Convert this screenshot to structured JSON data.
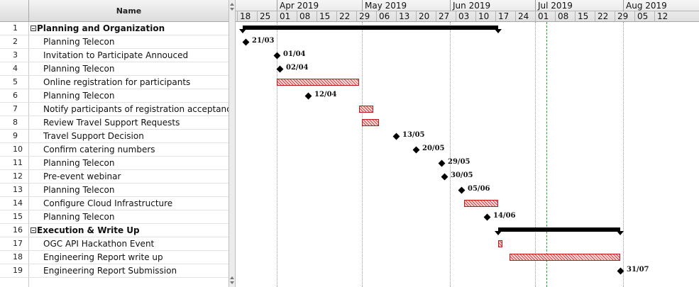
{
  "table": {
    "header_name": "Name",
    "rows": [
      {
        "id": "1",
        "name": "Planning and Organization",
        "summary": true
      },
      {
        "id": "2",
        "name": "Planning Telecon"
      },
      {
        "id": "3",
        "name": "Invitation to Participate Annouced"
      },
      {
        "id": "4",
        "name": "Planning Telecon"
      },
      {
        "id": "5",
        "name": "Online registration for participants"
      },
      {
        "id": "6",
        "name": "Planning Telecon"
      },
      {
        "id": "7",
        "name": "Notify participants of registration acceptance"
      },
      {
        "id": "8",
        "name": "Review Travel Support Requests"
      },
      {
        "id": "9",
        "name": "Travel Support Decision"
      },
      {
        "id": "10",
        "name": "Confirm catering numbers"
      },
      {
        "id": "11",
        "name": "Planning Telecon"
      },
      {
        "id": "12",
        "name": "Pre-event webinar"
      },
      {
        "id": "13",
        "name": "Planning Telecon"
      },
      {
        "id": "14",
        "name": "Configure Cloud Infrastructure"
      },
      {
        "id": "15",
        "name": "Planning Telecon"
      },
      {
        "id": "16",
        "name": "Execution & Write Up",
        "summary": true
      },
      {
        "id": "17",
        "name": "OGC API Hackathon Event"
      },
      {
        "id": "18",
        "name": "Engineering Report write up"
      },
      {
        "id": "19",
        "name": "Engineering Report Submission"
      }
    ]
  },
  "timescale": {
    "start_date": "2019-03-18",
    "months": [
      "Apr 2019",
      "May 2019",
      "Jun 2019",
      "Jul 2019",
      "Aug 2019"
    ],
    "weeks": [
      "18",
      "25",
      "01",
      "08",
      "15",
      "22",
      "29",
      "06",
      "13",
      "20",
      "27",
      "03",
      "10",
      "17",
      "24",
      "01",
      "08",
      "15",
      "22",
      "29",
      "05",
      "12"
    ]
  },
  "tasks": [
    {
      "row": 1,
      "type": "summary",
      "start": "2019-03-20",
      "end": "2019-06-18"
    },
    {
      "row": 2,
      "type": "milestone",
      "date": "2019-03-21",
      "label": "21/03"
    },
    {
      "row": 3,
      "type": "milestone",
      "date": "2019-04-01",
      "label": "01/04"
    },
    {
      "row": 4,
      "type": "milestone",
      "date": "2019-04-02",
      "label": "02/04"
    },
    {
      "row": 5,
      "type": "bar",
      "start": "2019-04-01",
      "end": "2019-04-30"
    },
    {
      "row": 6,
      "type": "milestone",
      "date": "2019-04-12",
      "label": "12/04"
    },
    {
      "row": 7,
      "type": "bar",
      "start": "2019-04-30",
      "end": "2019-05-05"
    },
    {
      "row": 8,
      "type": "bar",
      "start": "2019-05-01",
      "end": "2019-05-07"
    },
    {
      "row": 9,
      "type": "milestone",
      "date": "2019-05-13",
      "label": "13/05"
    },
    {
      "row": 10,
      "type": "milestone",
      "date": "2019-05-20",
      "label": "20/05"
    },
    {
      "row": 11,
      "type": "milestone",
      "date": "2019-05-29",
      "label": "29/05"
    },
    {
      "row": 12,
      "type": "milestone",
      "date": "2019-05-30",
      "label": "30/05"
    },
    {
      "row": 13,
      "type": "milestone",
      "date": "2019-06-05",
      "label": "05/06"
    },
    {
      "row": 14,
      "type": "bar",
      "start": "2019-06-06",
      "end": "2019-06-18"
    },
    {
      "row": 15,
      "type": "milestone",
      "date": "2019-06-14",
      "label": "14/06"
    },
    {
      "row": 16,
      "type": "summary",
      "start": "2019-06-18",
      "end": "2019-07-31"
    },
    {
      "row": 17,
      "type": "bar",
      "start": "2019-06-18",
      "end": "2019-06-19"
    },
    {
      "row": 18,
      "type": "bar",
      "start": "2019-06-22",
      "end": "2019-07-31"
    },
    {
      "row": 19,
      "type": "milestone",
      "date": "2019-07-31",
      "label": "31/07"
    }
  ],
  "today": "2019-07-05",
  "colors": {
    "bar_border": "#c01818",
    "bar_hatch": "#d94040",
    "summary": "#000000",
    "today_line": "#22aa22"
  }
}
